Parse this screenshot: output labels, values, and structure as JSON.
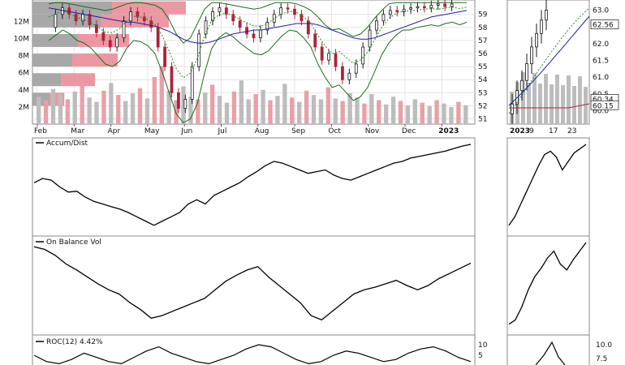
{
  "chart_data": {
    "type": "line",
    "colors": {
      "up": "#1a1a1a",
      "down": "#b0213a",
      "volume": "#bdbdbd",
      "volume_down": "#e8a0a8",
      "sma_fast": "#2b8a2b",
      "sma_slow": "#1f1fa0",
      "band": "#1d6b1d",
      "line": "#000000",
      "vbp_up": "#9e9e9e",
      "vbp_down": "#e98d98"
    },
    "main": {
      "x_labels": [
        "Feb",
        "Mar",
        "Apr",
        "May",
        "Jun",
        "Jul",
        "Aug",
        "Sep",
        "Oct",
        "Nov",
        "Dec",
        "2023"
      ],
      "price_ticks": [
        "59",
        "58",
        "57",
        "56",
        "55",
        "54",
        "53",
        "52",
        "51"
      ],
      "volume_ticks": [
        "12M",
        "10M",
        "8M",
        "6M",
        "4M",
        "2M"
      ],
      "volume_by_price": [
        {
          "price": 59.5,
          "up": 7.0,
          "down": 6.5
        },
        {
          "price": 58.5,
          "up": 6.0,
          "down": 6.0
        },
        {
          "price": 57.0,
          "up": 4.0,
          "down": 4.5
        },
        {
          "price": 55.5,
          "up": 3.5,
          "down": 4.0
        },
        {
          "price": 54.0,
          "up": 2.5,
          "down": 3.0
        },
        {
          "price": 52.5,
          "up": 1.5,
          "down": 1.3
        }
      ],
      "close_series": [
        58.0,
        59.0,
        59.5,
        59.0,
        58.5,
        59.0,
        58.2,
        57.6,
        57.0,
        56.5,
        57.2,
        58.5,
        59.2,
        58.8,
        58.5,
        58.0,
        56.5,
        55.0,
        53.0,
        51.8,
        52.5,
        55.0,
        57.5,
        58.5,
        59.2,
        59.5,
        59.0,
        58.5,
        58.0,
        57.5,
        57.2,
        57.8,
        58.4,
        59.0,
        59.5,
        59.4,
        59.0,
        58.5,
        57.5,
        56.5,
        55.5,
        56.0,
        55.0,
        54.0,
        54.5,
        55.2,
        56.5,
        57.8,
        58.5,
        59.0,
        59.3,
        59.2,
        59.4,
        59.5,
        59.6,
        59.5,
        59.7,
        59.8,
        59.6,
        59.8
      ],
      "band_upper_series": [
        59.8,
        59.9,
        59.9,
        59.8,
        59.7,
        59.6,
        59.5,
        59.4,
        59.3,
        59.4,
        59.6,
        59.8,
        59.9,
        59.9,
        59.8,
        59.7,
        59.4,
        58.6,
        57.5,
        56.8,
        57.2,
        58.3,
        59.4,
        59.9,
        59.9,
        59.8,
        59.7,
        59.6,
        59.5,
        59.4,
        59.5,
        59.7,
        59.9,
        59.9,
        59.9,
        59.8,
        59.6,
        59.3,
        58.8,
        58.2,
        57.8,
        57.9,
        57.6,
        57.3,
        57.5,
        58.0,
        58.7,
        59.3,
        59.8,
        59.9,
        59.9,
        59.9,
        59.9,
        59.9,
        59.9,
        59.9,
        59.9,
        59.9,
        59.9,
        59.9
      ],
      "band_lower_series": [
        57.0,
        57.4,
        57.8,
        57.5,
        57.0,
        56.8,
        56.4,
        55.8,
        55.2,
        55.0,
        55.4,
        56.4,
        57.0,
        56.9,
        56.6,
        56.0,
        54.6,
        53.0,
        51.4,
        50.7,
        51.0,
        52.2,
        54.5,
        56.4,
        57.2,
        57.6,
        57.3,
        56.8,
        56.4,
        56.0,
        55.9,
        56.2,
        56.8,
        57.4,
        57.8,
        57.7,
        57.2,
        56.5,
        55.2,
        54.2,
        53.4,
        53.6,
        53.0,
        52.4,
        52.7,
        53.4,
        54.6,
        55.9,
        56.8,
        57.4,
        57.8,
        57.8,
        58.0,
        58.1,
        58.2,
        58.1,
        58.3,
        58.4,
        58.2,
        58.4
      ],
      "sma_slow_series": [
        59.5,
        59.4,
        59.3,
        59.2,
        59.1,
        59.0,
        58.9,
        58.8,
        58.7,
        58.6,
        58.5,
        58.4,
        58.4,
        58.3,
        58.2,
        58.1,
        57.9,
        57.7,
        57.4,
        57.1,
        56.9,
        56.8,
        56.8,
        56.9,
        57.1,
        57.3,
        57.5,
        57.6,
        57.7,
        57.8,
        57.8,
        57.9,
        58.0,
        58.1,
        58.2,
        58.3,
        58.3,
        58.3,
        58.2,
        58.0,
        57.8,
        57.6,
        57.4,
        57.2,
        57.1,
        57.1,
        57.2,
        57.4,
        57.6,
        57.8,
        58.0,
        58.2,
        58.4,
        58.6,
        58.8,
        58.9,
        59.0,
        59.1,
        59.2,
        59.3
      ],
      "volume_m": [
        3.2,
        2.8,
        4.1,
        3.5,
        2.9,
        3.8,
        4.5,
        3.1,
        2.6,
        3.9,
        4.8,
        3.4,
        2.7,
        3.6,
        4.2,
        3.0,
        5.5,
        6.8,
        3.9,
        2.8,
        4.4,
        3.2,
        2.9,
        3.7,
        4.6,
        3.3,
        2.5,
        3.8,
        5.1,
        2.9,
        3.5,
        4.0,
        2.8,
        3.3,
        4.7,
        3.1,
        2.6,
        3.9,
        3.4,
        2.9,
        4.3,
        3.0,
        2.7,
        3.6,
        3.1,
        2.4,
        3.5,
        2.8,
        2.3,
        3.2,
        2.7,
        2.2,
        2.9,
        2.5,
        2.1,
        2.8,
        2.4,
        2.0,
        2.6,
        2.2
      ],
      "volume_down_flags": [
        0,
        1,
        0,
        0,
        1,
        0,
        1,
        0,
        0,
        1,
        0,
        1,
        0,
        0,
        1,
        0,
        1,
        1,
        0,
        1,
        0,
        0,
        1,
        0,
        1,
        0,
        0,
        1,
        0,
        0,
        1,
        0,
        1,
        0,
        0,
        1,
        0,
        1,
        0,
        0,
        1,
        0,
        1,
        0,
        0,
        1,
        0,
        1,
        0,
        0,
        1,
        0,
        0,
        1,
        0,
        1,
        0,
        0,
        1,
        0
      ]
    },
    "accum": {
      "title": "Accum/Dist",
      "series": [
        0.55,
        0.6,
        0.58,
        0.5,
        0.44,
        0.45,
        0.38,
        0.33,
        0.3,
        0.27,
        0.24,
        0.2,
        0.15,
        0.1,
        0.05,
        0.1,
        0.15,
        0.2,
        0.3,
        0.35,
        0.3,
        0.4,
        0.45,
        0.5,
        0.55,
        0.62,
        0.68,
        0.75,
        0.8,
        0.78,
        0.74,
        0.7,
        0.66,
        0.68,
        0.7,
        0.64,
        0.6,
        0.58,
        0.62,
        0.66,
        0.7,
        0.74,
        0.78,
        0.8,
        0.84,
        0.86,
        0.88,
        0.9,
        0.92,
        0.95,
        0.98,
        1.0
      ]
    },
    "obv": {
      "title": "On Balance Vol",
      "series": [
        0.95,
        0.92,
        0.85,
        0.75,
        0.68,
        0.6,
        0.52,
        0.45,
        0.4,
        0.3,
        0.22,
        0.12,
        0.15,
        0.2,
        0.25,
        0.3,
        0.35,
        0.45,
        0.55,
        0.62,
        0.68,
        0.72,
        0.6,
        0.5,
        0.4,
        0.3,
        0.15,
        0.1,
        0.2,
        0.3,
        0.4,
        0.45,
        0.48,
        0.52,
        0.56,
        0.5,
        0.45,
        0.5,
        0.58,
        0.64,
        0.7,
        0.76
      ]
    },
    "roc": {
      "title": "ROC(12) 4.42%",
      "ticks": [
        "10",
        "5"
      ],
      "series": [
        5,
        2,
        1,
        3,
        6,
        4,
        2,
        1,
        4,
        7,
        9,
        6,
        4,
        2,
        1,
        3,
        5,
        8,
        10,
        9,
        6,
        3,
        1,
        2,
        5,
        7,
        6,
        4,
        2,
        3,
        6,
        8,
        9,
        7,
        4,
        2
      ]
    },
    "side": {
      "x_labels": [
        "2023",
        "9",
        "17",
        "23"
      ],
      "price_ticks": [
        "63.0",
        "62.0",
        "61.5",
        "61.0",
        "60.5",
        "60.0"
      ],
      "price_labels": [
        "62.56",
        "60.34",
        "60.15"
      ],
      "roc_ticks": [
        "10.0",
        "7.5"
      ],
      "accum_series": [
        0.05,
        0.15,
        0.3,
        0.45,
        0.6,
        0.75,
        0.88,
        0.92,
        0.85,
        0.7,
        0.8,
        0.9,
        0.95,
        1.0
      ],
      "obv_series": [
        0.05,
        0.1,
        0.25,
        0.45,
        0.6,
        0.7,
        0.82,
        0.9,
        0.75,
        0.68,
        0.8,
        0.9,
        1.0
      ]
    }
  }
}
